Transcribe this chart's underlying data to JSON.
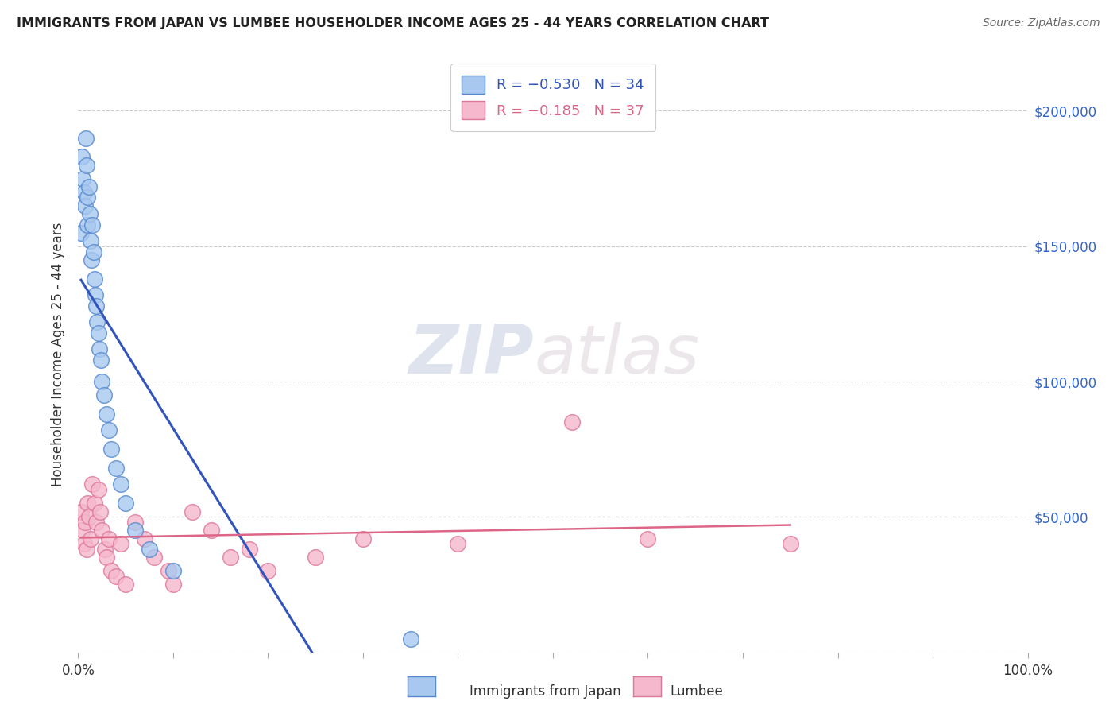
{
  "title": "IMMIGRANTS FROM JAPAN VS LUMBEE HOUSEHOLDER INCOME AGES 25 - 44 YEARS CORRELATION CHART",
  "source": "Source: ZipAtlas.com",
  "ylabel": "Householder Income Ages 25 - 44 years",
  "xlim": [
    0,
    100
  ],
  "ylim": [
    0,
    220000
  ],
  "legend_r1": "R = −0.530",
  "legend_n1": "N = 34",
  "legend_r2": "R = −0.185",
  "legend_n2": "N = 37",
  "color_japan": "#a8c8f0",
  "color_lumbee": "#f5b8cc",
  "edge_japan": "#5588cc",
  "edge_lumbee": "#dd7799",
  "line_japan": "#3355bb",
  "line_lumbee": "#dd6688",
  "watermark_zip": "ZIP",
  "watermark_atlas": "atlas",
  "background": "#ffffff",
  "japan_x": [
    0.3,
    0.4,
    0.5,
    0.6,
    0.7,
    0.8,
    0.9,
    1.0,
    1.0,
    1.1,
    1.2,
    1.3,
    1.4,
    1.5,
    1.6,
    1.7,
    1.8,
    1.9,
    2.0,
    2.1,
    2.2,
    2.4,
    2.5,
    2.7,
    3.0,
    3.2,
    3.5,
    4.0,
    4.5,
    5.0,
    6.0,
    7.5,
    10.0,
    35.0
  ],
  "japan_y": [
    155000,
    183000,
    175000,
    170000,
    165000,
    190000,
    180000,
    168000,
    158000,
    172000,
    162000,
    152000,
    145000,
    158000,
    148000,
    138000,
    132000,
    128000,
    122000,
    118000,
    112000,
    108000,
    100000,
    95000,
    88000,
    82000,
    75000,
    68000,
    62000,
    55000,
    45000,
    38000,
    30000,
    5000
  ],
  "lumbee_x": [
    0.3,
    0.5,
    0.6,
    0.7,
    0.9,
    1.0,
    1.1,
    1.3,
    1.5,
    1.7,
    1.9,
    2.1,
    2.3,
    2.5,
    2.8,
    3.0,
    3.2,
    3.5,
    4.0,
    4.5,
    5.0,
    6.0,
    7.0,
    8.0,
    9.5,
    10.0,
    12.0,
    14.0,
    16.0,
    18.0,
    20.0,
    25.0,
    30.0,
    40.0,
    52.0,
    60.0,
    75.0
  ],
  "lumbee_y": [
    52000,
    45000,
    40000,
    48000,
    38000,
    55000,
    50000,
    42000,
    62000,
    55000,
    48000,
    60000,
    52000,
    45000,
    38000,
    35000,
    42000,
    30000,
    28000,
    40000,
    25000,
    48000,
    42000,
    35000,
    30000,
    25000,
    52000,
    45000,
    35000,
    38000,
    30000,
    35000,
    42000,
    40000,
    85000,
    42000,
    40000
  ]
}
